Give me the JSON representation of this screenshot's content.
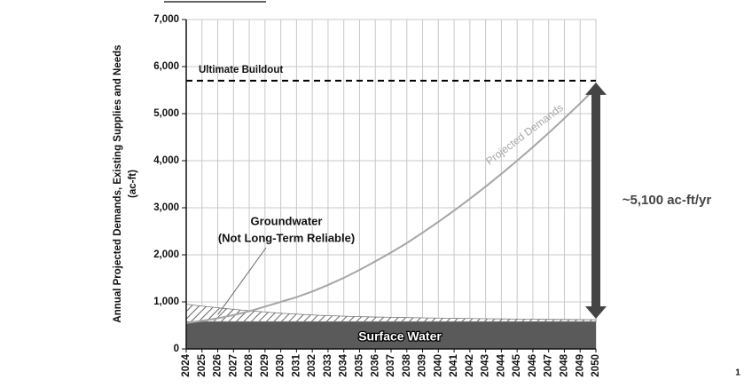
{
  "chart_data": {
    "type": "area",
    "y_label": [
      "Annual Projected Demands, Existing Supplies and Needs",
      "(ac-ft)"
    ],
    "categories": [
      "2024",
      "2025",
      "2026",
      "2027",
      "2028",
      "2029",
      "2030",
      "2031",
      "2032",
      "2033",
      "2034",
      "2035",
      "2036",
      "2037",
      "2038",
      "2039",
      "2040",
      "2041",
      "2042",
      "2043",
      "2044",
      "2045",
      "2046",
      "2047",
      "2048",
      "2049",
      "2050"
    ],
    "series": [
      {
        "name": "Surface Water",
        "kind": "area",
        "color": "#5a5a5a",
        "values": [
          580,
          580,
          580,
          580,
          580,
          580,
          580,
          580,
          580,
          580,
          580,
          580,
          580,
          580,
          580,
          580,
          580,
          580,
          580,
          580,
          580,
          580,
          580,
          580,
          580,
          580,
          580
        ]
      },
      {
        "name": "Groundwater",
        "note": "(Not Long-Term Reliable)",
        "kind": "area",
        "color": "#777777",
        "values": [
          370,
          330,
          295,
          262,
          232,
          205,
          180,
          160,
          142,
          128,
          116,
          106,
          98,
          92,
          86,
          80,
          75,
          70,
          66,
          62,
          58,
          55,
          52,
          49,
          46,
          44,
          42
        ]
      },
      {
        "name": "Projected Demands",
        "kind": "line",
        "color": "#a6a6a6",
        "values": [
          550,
          600,
          650,
          720,
          800,
          900,
          1000,
          1100,
          1220,
          1360,
          1510,
          1680,
          1860,
          2050,
          2250,
          2470,
          2700,
          2940,
          3190,
          3450,
          3720,
          4000,
          4290,
          4590,
          4900,
          5220,
          5550
        ]
      }
    ],
    "reference": {
      "label": "Ultimate Buildout",
      "value": 5700
    },
    "gap_label": "~5,100 ac-ft/yr",
    "ylim": [
      0,
      7000
    ],
    "yticks": [
      0,
      {
        "value": 1000,
        "label": "1,000"
      },
      {
        "value": 2000,
        "label": "2,000"
      },
      {
        "value": 3000,
        "label": "3,000"
      },
      {
        "value": 4000,
        "label": "4,000"
      },
      {
        "value": 5000,
        "label": "5,000"
      },
      {
        "value": 6000,
        "label": "6,000"
      },
      {
        "value": 7000,
        "label": "7,000"
      }
    ],
    "grid": true,
    "page_number": "1"
  }
}
